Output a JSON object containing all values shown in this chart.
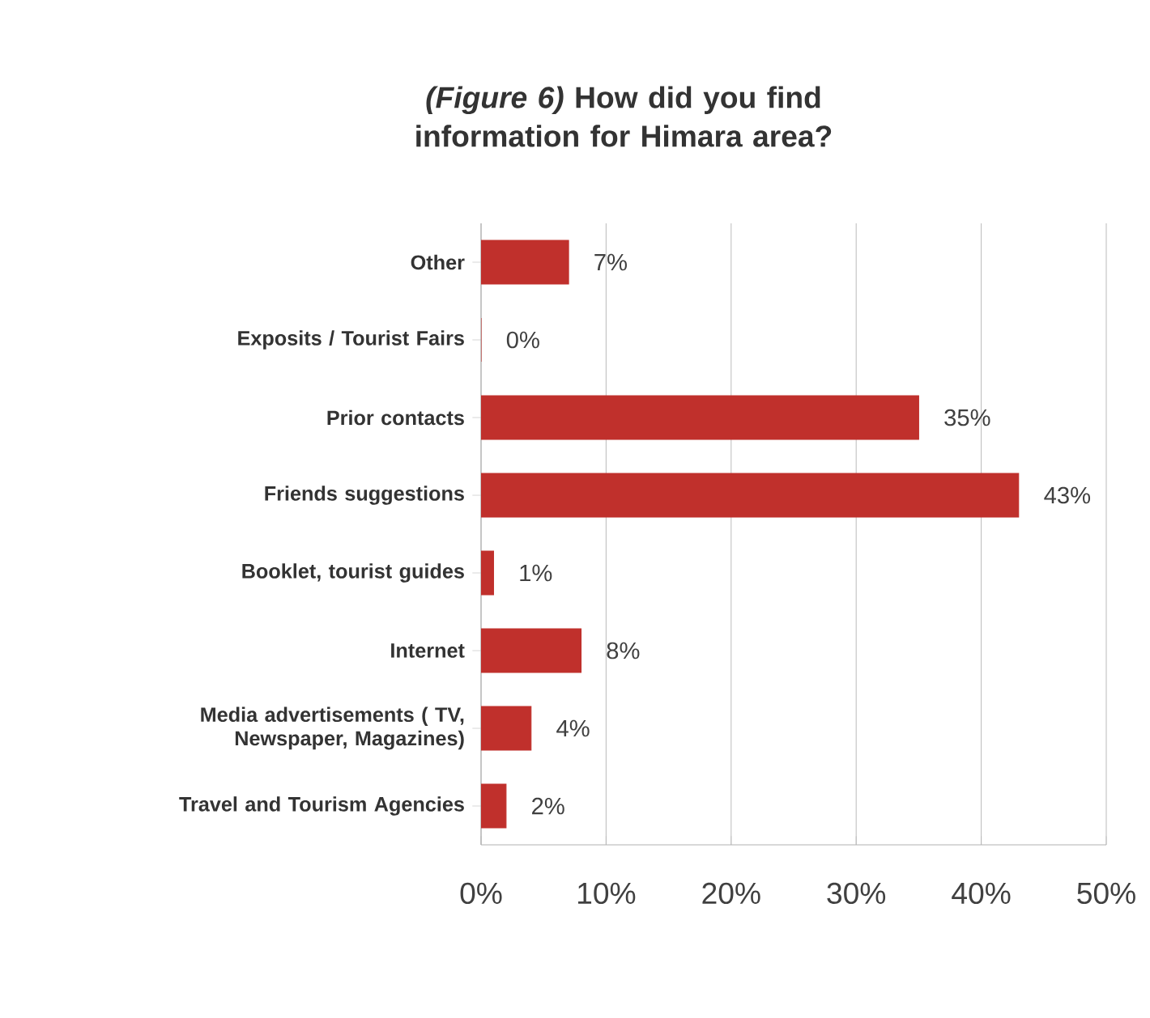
{
  "chart_data": {
    "type": "bar",
    "orientation": "horizontal",
    "title": "*(Figure 6)* How did you find information for Himara area?",
    "categories": [
      "Other",
      "Exposits / Tourist Fairs",
      "Prior contacts",
      "Friends suggestions",
      "Booklet, tourist guides",
      "Internet",
      "Media advertisements ( TV, Newspaper, Magazines)",
      "Travel and Tourism Agencies"
    ],
    "values": [
      7,
      0,
      35,
      43,
      1,
      8,
      4,
      2
    ],
    "value_labels": [
      "7%",
      "0%",
      "35%",
      "43%",
      "1%",
      "8%",
      "4%",
      "2%"
    ],
    "color": "#c0302c",
    "xlim": [
      0,
      50
    ],
    "xticks": [
      {
        "value": 0,
        "label": "0%"
      },
      {
        "value": 10,
        "label": "10%"
      },
      {
        "value": 20,
        "label": "20%"
      },
      {
        "value": 30,
        "label": "30%"
      },
      {
        "value": 40,
        "label": "40%"
      },
      {
        "value": 50,
        "label": "50%"
      }
    ],
    "grid": "x"
  }
}
